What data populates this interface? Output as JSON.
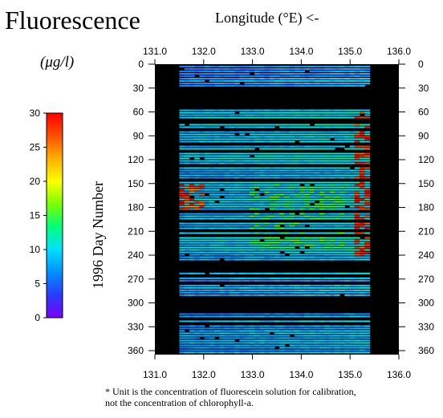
{
  "chart_data": {
    "type": "heatmap",
    "title": "Fluorescence",
    "xlabel": "Longitude (°E) <-",
    "ylabel": "1996 Day Number",
    "colorbar_unit": "(μg/l)",
    "xlim": [
      131.0,
      136.0
    ],
    "ylim": [
      0,
      365
    ],
    "x_ticks": [
      "131.0",
      "132.0",
      "133.0",
      "134.0",
      "135.0",
      "136.0"
    ],
    "y_ticks": [
      "0",
      "30",
      "60",
      "90",
      "120",
      "150",
      "180",
      "210",
      "240",
      "270",
      "300",
      "330",
      "360"
    ],
    "colorbar": {
      "range": [
        0,
        30
      ],
      "ticks": [
        "0",
        "5",
        "10",
        "15",
        "20",
        "25",
        "30"
      ],
      "colors": [
        "#7a00ff",
        "#2a3cff",
        "#0090ff",
        "#00e0ff",
        "#00ff7a",
        "#7aff00",
        "#ffff00",
        "#ffb000",
        "#ff5000",
        "#ff0000"
      ]
    },
    "no_data_color": "#000000",
    "data_lon_range": [
      131.5,
      135.4
    ],
    "sampled_day_ranges": [
      [
        2,
        32
      ],
      [
        57,
        245
      ],
      [
        262,
        290
      ],
      [
        313,
        362
      ]
    ],
    "high_values": [
      {
        "region": "western edge near 131.5°E",
        "days": [
          150,
          185
        ],
        "level": ">25"
      },
      {
        "region": "eastern edge near 135.2°E",
        "days": [
          60,
          240
        ],
        "level": ">25"
      }
    ],
    "footnote": [
      "* Unit is the concentration of fluorescein solution for calibration,",
      "not the concentration of chlorophyll-a."
    ]
  }
}
